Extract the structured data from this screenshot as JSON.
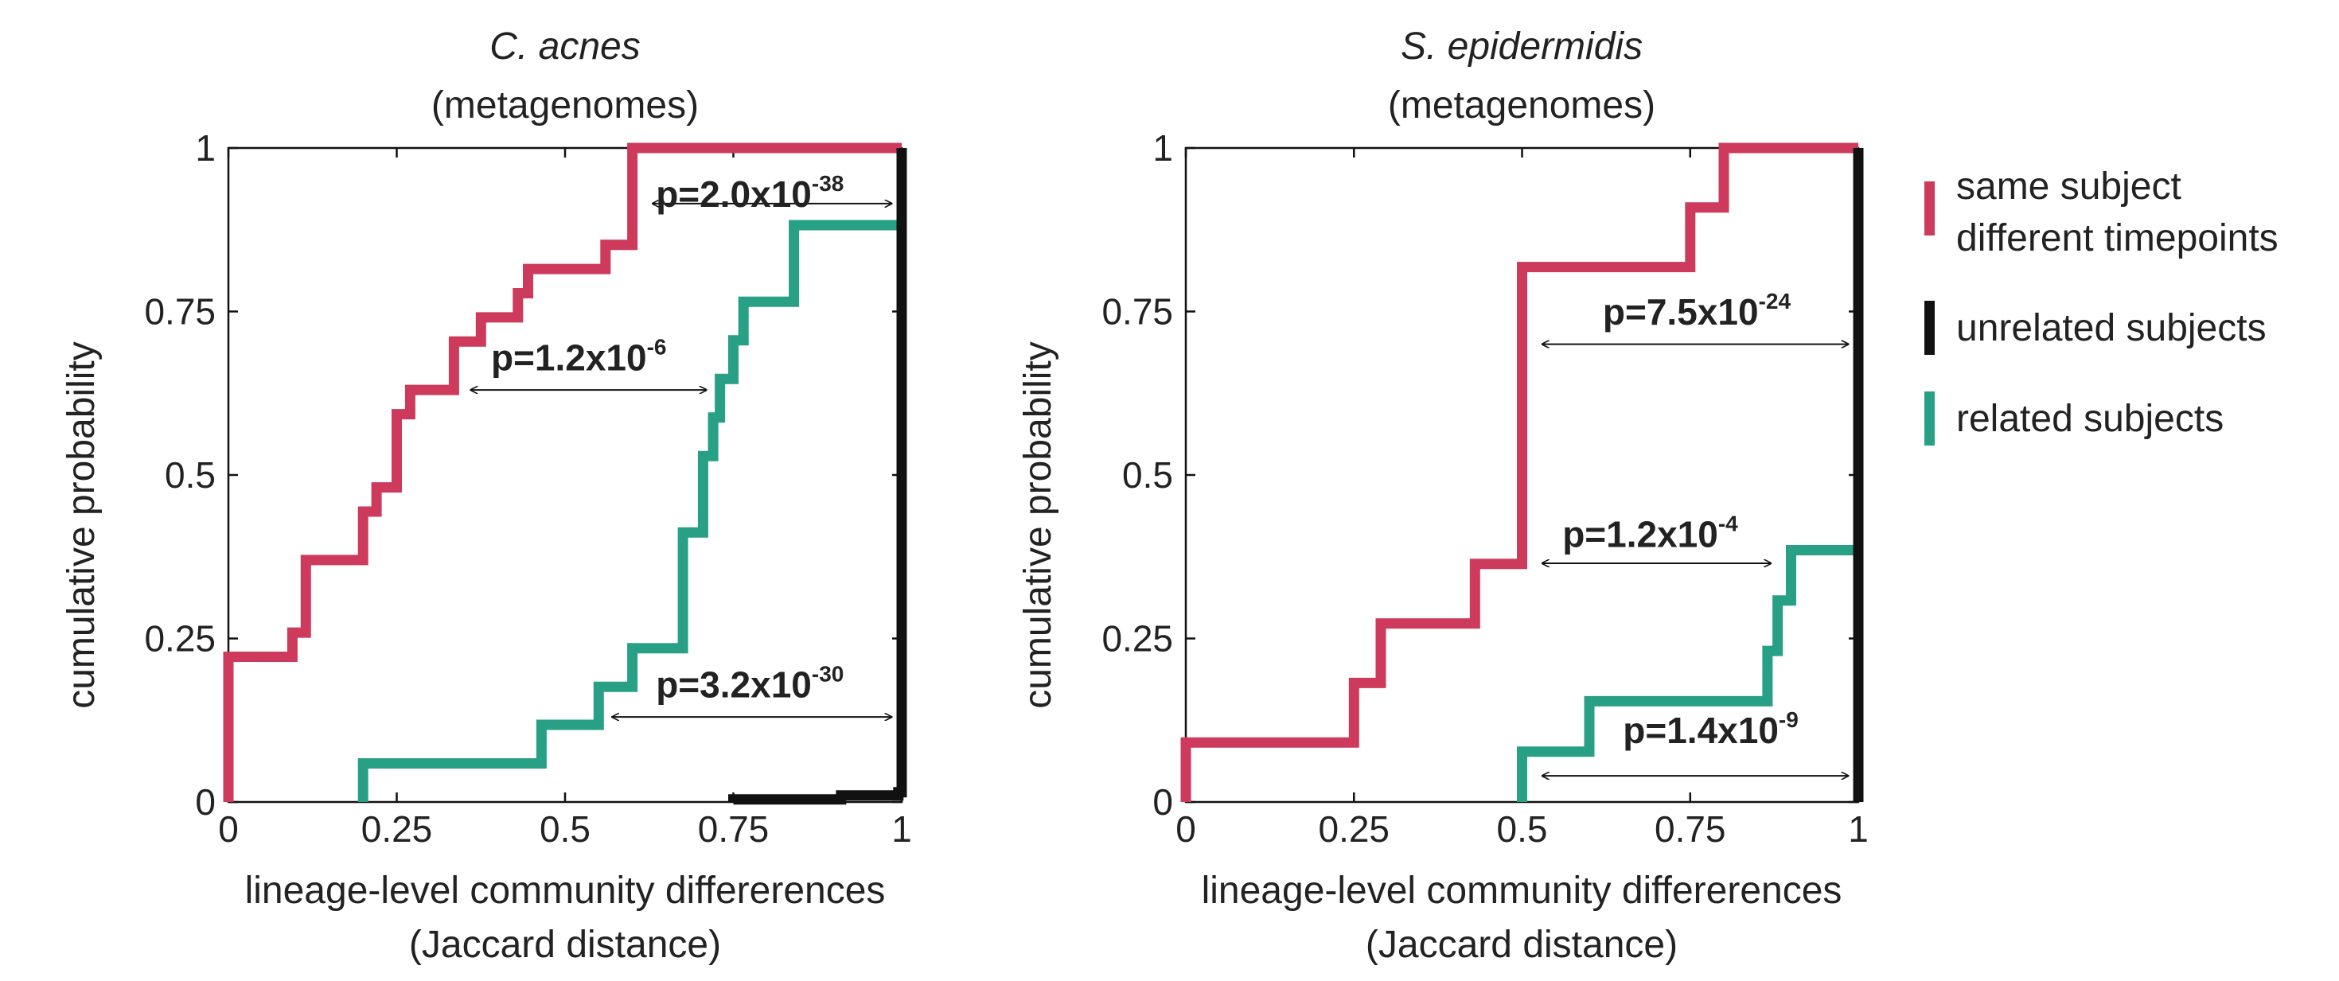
{
  "figure": {
    "legend": [
      {
        "key": "same",
        "lines": [
          "same subject",
          "different timepoints"
        ],
        "color": "#cd3a5b"
      },
      {
        "key": "unrelated",
        "lines": [
          "unrelated subjects"
        ],
        "color": "#111111"
      },
      {
        "key": "related",
        "lines": [
          "related subjects"
        ],
        "color": "#27a085"
      }
    ]
  },
  "chart_data": [
    {
      "type": "line",
      "id": "cacnes",
      "title": "C. acnes",
      "subtitle": "(metagenomes)",
      "xlabel": "lineage-level community differerences",
      "xlabel2": "(Jaccard distance)",
      "ylabel": "cumulative probability",
      "xlim": [
        0,
        1
      ],
      "ylim": [
        0,
        1
      ],
      "xticks": [
        "0",
        "0.25",
        "0.5",
        "0.75",
        "1"
      ],
      "yticks": [
        "0",
        "0.25",
        "0.5",
        "0.75",
        "1"
      ],
      "series": [
        {
          "name": "same subject different timepoints",
          "color": "#cd3a5b",
          "steps": [
            [
              0,
              0
            ],
            [
              0,
              0.222
            ],
            [
              0.095,
              0.222
            ],
            [
              0.095,
              0.259
            ],
            [
              0.115,
              0.259
            ],
            [
              0.115,
              0.37
            ],
            [
              0.2,
              0.37
            ],
            [
              0.2,
              0.444
            ],
            [
              0.22,
              0.444
            ],
            [
              0.22,
              0.481
            ],
            [
              0.25,
              0.481
            ],
            [
              0.25,
              0.593
            ],
            [
              0.27,
              0.593
            ],
            [
              0.27,
              0.63
            ],
            [
              0.335,
              0.63
            ],
            [
              0.335,
              0.704
            ],
            [
              0.375,
              0.704
            ],
            [
              0.375,
              0.741
            ],
            [
              0.43,
              0.741
            ],
            [
              0.43,
              0.778
            ],
            [
              0.445,
              0.778
            ],
            [
              0.445,
              0.815
            ],
            [
              0.56,
              0.815
            ],
            [
              0.56,
              0.852
            ],
            [
              0.6,
              0.852
            ],
            [
              0.6,
              1.0
            ],
            [
              1.0,
              1.0
            ]
          ]
        },
        {
          "name": "related subjects",
          "color": "#27a085",
          "steps": [
            [
              0.2,
              0
            ],
            [
              0.2,
              0.059
            ],
            [
              0.465,
              0.059
            ],
            [
              0.465,
              0.118
            ],
            [
              0.55,
              0.118
            ],
            [
              0.55,
              0.176
            ],
            [
              0.6,
              0.176
            ],
            [
              0.6,
              0.235
            ],
            [
              0.675,
              0.235
            ],
            [
              0.675,
              0.412
            ],
            [
              0.705,
              0.412
            ],
            [
              0.705,
              0.529
            ],
            [
              0.72,
              0.529
            ],
            [
              0.72,
              0.588
            ],
            [
              0.73,
              0.588
            ],
            [
              0.73,
              0.647
            ],
            [
              0.75,
              0.647
            ],
            [
              0.75,
              0.706
            ],
            [
              0.765,
              0.706
            ],
            [
              0.765,
              0.765
            ],
            [
              0.84,
              0.765
            ],
            [
              0.84,
              0.882
            ],
            [
              1.0,
              0.882
            ]
          ]
        },
        {
          "name": "unrelated subjects",
          "color": "#111111",
          "steps": [
            [
              0.75,
              0
            ],
            [
              0.75,
              0.004
            ],
            [
              0.91,
              0.004
            ],
            [
              0.91,
              0.01
            ],
            [
              0.995,
              0.01
            ],
            [
              0.995,
              0.015
            ],
            [
              1.0,
              0.015
            ],
            [
              1.0,
              1.0
            ]
          ]
        }
      ],
      "annotations": [
        {
          "base": "p=2.0x10",
          "exp": "-38",
          "x": 0.635,
          "y": 0.91,
          "from": 0.63,
          "to": 0.985,
          "arrow_y": 0.915
        },
        {
          "base": "p=1.2x10",
          "exp": "-6",
          "x": 0.39,
          "y": 0.66,
          "from": 0.36,
          "to": 0.71,
          "arrow_y": 0.63
        },
        {
          "base": "p=3.2x10",
          "exp": "-30",
          "x": 0.635,
          "y": 0.16,
          "from": 0.57,
          "to": 0.985,
          "arrow_y": 0.13
        }
      ]
    },
    {
      "type": "line",
      "id": "sepi",
      "title": "S. epidermidis",
      "subtitle": "(metagenomes)",
      "xlabel": "lineage-level community differerences",
      "xlabel2": "(Jaccard distance)",
      "ylabel": "cumulative probability",
      "xlim": [
        0,
        1
      ],
      "ylim": [
        0,
        1
      ],
      "xticks": [
        "0",
        "0.25",
        "0.5",
        "0.75",
        "1"
      ],
      "yticks": [
        "0",
        "0.25",
        "0.5",
        "0.75",
        "1"
      ],
      "series": [
        {
          "name": "same subject different timepoints",
          "color": "#cd3a5b",
          "steps": [
            [
              0,
              0
            ],
            [
              0,
              0.091
            ],
            [
              0.25,
              0.091
            ],
            [
              0.25,
              0.182
            ],
            [
              0.29,
              0.182
            ],
            [
              0.29,
              0.273
            ],
            [
              0.43,
              0.273
            ],
            [
              0.43,
              0.364
            ],
            [
              0.5,
              0.364
            ],
            [
              0.5,
              0.818
            ],
            [
              0.75,
              0.818
            ],
            [
              0.75,
              0.909
            ],
            [
              0.8,
              0.909
            ],
            [
              0.8,
              1.0
            ],
            [
              1.0,
              1.0
            ]
          ]
        },
        {
          "name": "related subjects",
          "color": "#27a085",
          "steps": [
            [
              0.5,
              0
            ],
            [
              0.5,
              0.077
            ],
            [
              0.6,
              0.077
            ],
            [
              0.6,
              0.154
            ],
            [
              0.865,
              0.154
            ],
            [
              0.865,
              0.231
            ],
            [
              0.88,
              0.231
            ],
            [
              0.88,
              0.308
            ],
            [
              0.9,
              0.308
            ],
            [
              0.9,
              0.385
            ],
            [
              1.0,
              0.385
            ]
          ]
        },
        {
          "name": "unrelated subjects",
          "color": "#111111",
          "steps": [
            [
              1.0,
              0
            ],
            [
              1.0,
              1.0
            ]
          ]
        }
      ],
      "annotations": [
        {
          "base": "p=7.5x10",
          "exp": "-24",
          "x": 0.62,
          "y": 0.73,
          "from": 0.53,
          "to": 0.985,
          "arrow_y": 0.7
        },
        {
          "base": "p=1.2x10",
          "exp": "-4",
          "x": 0.56,
          "y": 0.39,
          "from": 0.53,
          "to": 0.87,
          "arrow_y": 0.365
        },
        {
          "base": "p=1.4x10",
          "exp": "-9",
          "x": 0.65,
          "y": 0.09,
          "from": 0.53,
          "to": 0.985,
          "arrow_y": 0.04
        }
      ]
    }
  ]
}
